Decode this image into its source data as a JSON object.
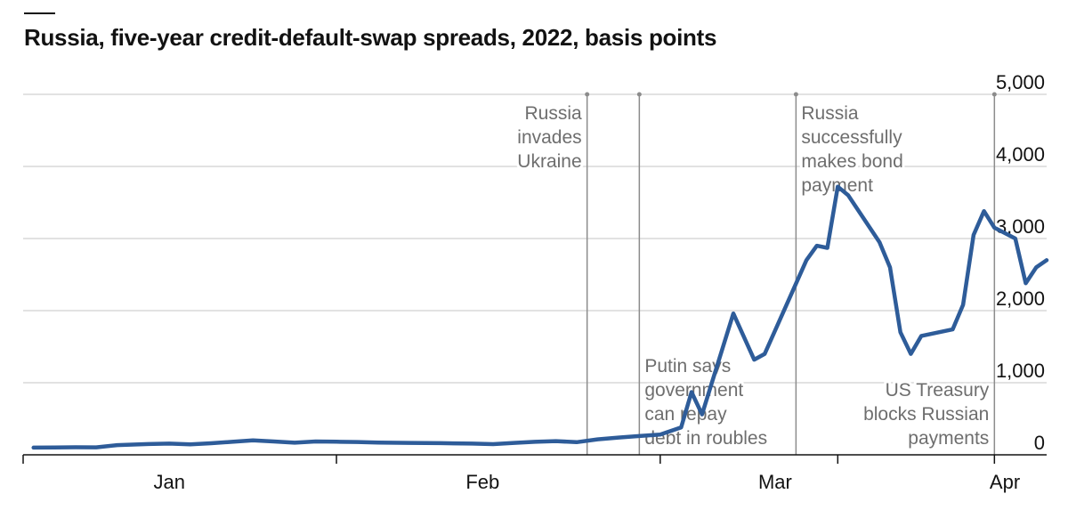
{
  "header": {
    "title": "Russia, five-year credit-default-swap spreads, 2022, basis points"
  },
  "colors": {
    "line": "#2e5c99",
    "grid": "#d9d9d9",
    "event_line": "#8c8c8c",
    "annotation_text": "#6e6e6e",
    "axis": "#121212"
  },
  "chart_data": {
    "type": "line",
    "title": "Russia, five-year credit-default-swap spreads, 2022, basis points",
    "xlabel": "",
    "ylabel": "",
    "xlim": [
      "2022-01-01",
      "2022-04-09"
    ],
    "ylim": [
      0,
      5000
    ],
    "grid": true,
    "y_axis_side": "right",
    "y_ticks": [
      0,
      1000,
      2000,
      3000,
      4000,
      5000
    ],
    "y_tick_labels": [
      "0",
      "1,000",
      "2,000",
      "3,000",
      "4,000",
      "5,000"
    ],
    "x_ticks": [
      {
        "date": "2022-01-15",
        "label": "Jan"
      },
      {
        "date": "2022-02-14",
        "label": "Feb"
      },
      {
        "date": "2022-03-14",
        "label": "Mar"
      },
      {
        "date": "2022-04-05",
        "label": "Apr"
      }
    ],
    "month_boundaries": [
      "2022-01-01",
      "2022-01-31",
      "2022-03-03",
      "2022-03-20",
      "2022-04-04"
    ],
    "series": [
      {
        "points": [
          [
            "2022-01-02",
            100
          ],
          [
            "2022-01-04",
            102
          ],
          [
            "2022-01-06",
            105
          ],
          [
            "2022-01-08",
            104
          ],
          [
            "2022-01-10",
            135
          ],
          [
            "2022-01-13",
            150
          ],
          [
            "2022-01-15",
            155
          ],
          [
            "2022-01-17",
            145
          ],
          [
            "2022-01-19",
            160
          ],
          [
            "2022-01-21",
            180
          ],
          [
            "2022-01-23",
            200
          ],
          [
            "2022-01-25",
            185
          ],
          [
            "2022-01-27",
            168
          ],
          [
            "2022-01-29",
            185
          ],
          [
            "2022-01-31",
            182
          ],
          [
            "2022-02-02",
            178
          ],
          [
            "2022-02-04",
            170
          ],
          [
            "2022-02-07",
            165
          ],
          [
            "2022-02-10",
            162
          ],
          [
            "2022-02-13",
            155
          ],
          [
            "2022-02-15",
            148
          ],
          [
            "2022-02-17",
            165
          ],
          [
            "2022-02-19",
            180
          ],
          [
            "2022-02-21",
            190
          ],
          [
            "2022-02-23",
            175
          ],
          [
            "2022-02-25",
            215
          ],
          [
            "2022-02-27",
            240
          ],
          [
            "2022-03-01",
            260
          ],
          [
            "2022-03-03",
            280
          ],
          [
            "2022-03-05",
            380
          ],
          [
            "2022-03-06",
            870
          ],
          [
            "2022-03-07",
            560
          ],
          [
            "2022-03-10",
            1960
          ],
          [
            "2022-03-12",
            1320
          ],
          [
            "2022-03-13",
            1400
          ],
          [
            "2022-03-17",
            2700
          ],
          [
            "2022-03-18",
            2900
          ],
          [
            "2022-03-19",
            2870
          ],
          [
            "2022-03-20",
            3720
          ],
          [
            "2022-03-21",
            3600
          ],
          [
            "2022-03-24",
            2950
          ],
          [
            "2022-03-25",
            2600
          ],
          [
            "2022-03-26",
            1700
          ],
          [
            "2022-03-27",
            1400
          ],
          [
            "2022-03-28",
            1650
          ],
          [
            "2022-03-31",
            1740
          ],
          [
            "2022-04-01",
            2080
          ],
          [
            "2022-04-02",
            3050
          ],
          [
            "2022-04-03",
            3380
          ],
          [
            "2022-04-04",
            3150
          ],
          [
            "2022-04-06",
            3000
          ],
          [
            "2022-04-07",
            2380
          ],
          [
            "2022-04-08",
            2600
          ],
          [
            "2022-04-09",
            2700
          ]
        ]
      }
    ],
    "annotations": [
      {
        "date": "2022-02-24",
        "lines": [
          "Russia",
          "invades",
          "Ukraine"
        ],
        "position": "top-left"
      },
      {
        "date": "2022-03-01",
        "lines": [
          "Putin says",
          "government",
          "can repay",
          "debt in roubles"
        ],
        "position": "bottom-right"
      },
      {
        "date": "2022-03-16",
        "lines": [
          "Russia",
          "successfully",
          "makes bond",
          "payment"
        ],
        "position": "top-right"
      },
      {
        "date": "2022-04-04",
        "lines": [
          "US Treasury",
          "blocks Russian",
          "payments"
        ],
        "position": "bottom-left"
      }
    ]
  }
}
